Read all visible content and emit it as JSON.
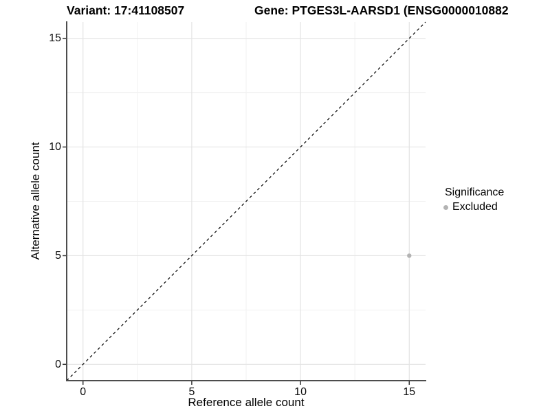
{
  "chart_data": {
    "type": "scatter",
    "title_left": "Variant: 17:41108507",
    "title_right": "Gene: PTGES3L-AARSD1 (ENSG0000010882",
    "xlabel": "Reference allele count",
    "ylabel": "Alternative allele count",
    "xlim": [
      -0.75,
      15.75
    ],
    "ylim": [
      -0.75,
      15.75
    ],
    "xticks": [
      0,
      5,
      10,
      15
    ],
    "yticks": [
      0,
      5,
      10,
      15
    ],
    "minor_xticks": [
      2.5,
      7.5,
      12.5
    ],
    "minor_yticks": [
      2.5,
      7.5,
      12.5
    ],
    "grid": "major+minor",
    "legend_position": "right",
    "legend_title": "Significance",
    "series": [
      {
        "name": "Excluded",
        "color": "#b3b3b3",
        "points": [
          {
            "x": 15,
            "y": 5
          }
        ]
      }
    ],
    "abline": {
      "slope": 1,
      "intercept": 0,
      "style": "dashed",
      "color": "#000000"
    }
  }
}
